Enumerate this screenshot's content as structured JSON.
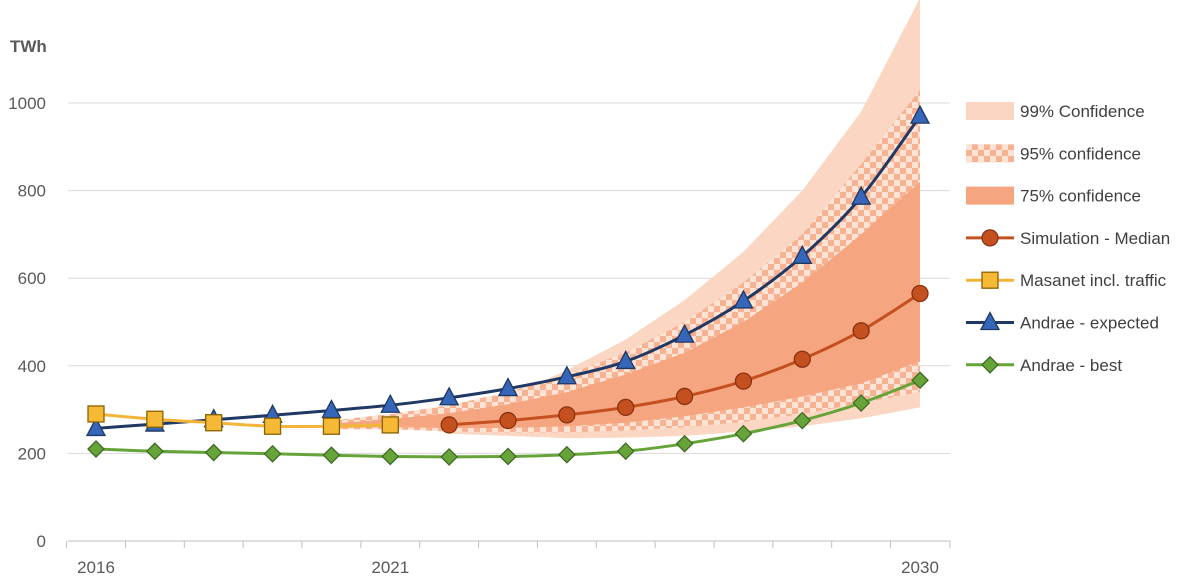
{
  "chart_data": {
    "type": "line",
    "title": "",
    "ylabel": "TWh",
    "xlabel": "",
    "ylim": [
      0,
      1100
    ],
    "yticks": [
      0,
      200,
      400,
      600,
      800,
      1000
    ],
    "xlim": [
      2016,
      2030
    ],
    "xtick_labels": [
      "2016",
      "2021",
      "2030"
    ],
    "xtick_years": [
      2016,
      2021,
      2030
    ],
    "grid": true,
    "legend_position": "right",
    "bands": [
      {
        "name": "99% Confidence",
        "color": "#fbd7c3",
        "pattern": "solid",
        "x": [
          2022,
          2023,
          2024,
          2025,
          2026,
          2027,
          2028,
          2029,
          2030
        ],
        "lower": [
          245,
          240,
          235,
          236,
          240,
          250,
          262,
          280,
          305
        ],
        "upper": [
          285,
          330,
          390,
          460,
          550,
          660,
          800,
          980,
          1240
        ]
      },
      {
        "name": "95% confidence",
        "color": "#f7b293",
        "pattern": "checker",
        "x": [
          2020,
          2021,
          2022,
          2023,
          2024,
          2025,
          2026,
          2027,
          2028,
          2029,
          2030
        ],
        "lower": [
          255,
          255,
          250,
          248,
          248,
          252,
          260,
          272,
          290,
          315,
          340
        ],
        "upper": [
          275,
          290,
          310,
          340,
          380,
          430,
          500,
          590,
          700,
          860,
          1030
        ]
      },
      {
        "name": "75% confidence",
        "color": "#f5a57f",
        "pattern": "solid",
        "x": [
          2020,
          2021,
          2022,
          2023,
          2024,
          2025,
          2026,
          2027,
          2028,
          2029,
          2030
        ],
        "lower": [
          258,
          260,
          258,
          258,
          262,
          270,
          285,
          305,
          330,
          360,
          410
        ],
        "upper": [
          268,
          278,
          292,
          312,
          340,
          380,
          430,
          500,
          590,
          700,
          820
        ]
      }
    ],
    "series": [
      {
        "name": "Simulation - Median",
        "color": "#c4501f",
        "marker": "circle",
        "marker_fill": "#c4501f",
        "x": [
          2022,
          2023,
          2024,
          2025,
          2026,
          2027,
          2028,
          2029,
          2030
        ],
        "values": [
          265,
          275,
          288,
          305,
          330,
          365,
          415,
          480,
          565
        ]
      },
      {
        "name": "Masanet incl. traffic",
        "color": "#f2b53a",
        "marker": "square",
        "marker_fill": "#f5b935",
        "x": [
          2016,
          2017,
          2018,
          2019,
          2020,
          2021
        ],
        "values": [
          290,
          278,
          270,
          262,
          262,
          265
        ]
      },
      {
        "name": "Andrae - expected",
        "color": "#1f3864",
        "marker": "triangle",
        "marker_fill": "#3566b8",
        "x": [
          2016,
          2017,
          2018,
          2019,
          2020,
          2021,
          2022,
          2023,
          2024,
          2025,
          2026,
          2027,
          2028,
          2029,
          2030
        ],
        "values": [
          257,
          267,
          277,
          287,
          298,
          310,
          327,
          348,
          375,
          410,
          470,
          548,
          650,
          785,
          970
        ]
      },
      {
        "name": "Andrae - best",
        "color": "#66a43a",
        "marker": "diamond",
        "marker_fill": "#66a43a",
        "x": [
          2016,
          2017,
          2018,
          2019,
          2020,
          2021,
          2022,
          2023,
          2024,
          2025,
          2026,
          2027,
          2028,
          2029,
          2030
        ],
        "values": [
          210,
          205,
          202,
          199,
          196,
          193,
          192,
          193,
          197,
          205,
          222,
          245,
          275,
          315,
          367
        ]
      }
    ]
  }
}
